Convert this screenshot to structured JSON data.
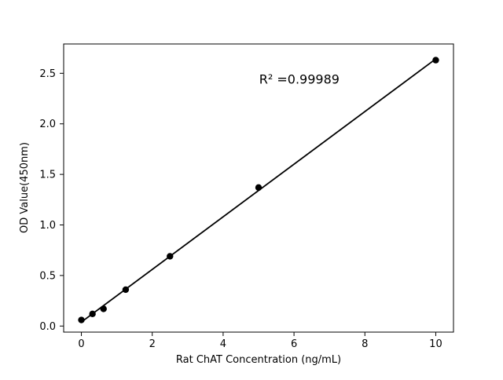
{
  "chart_data": {
    "type": "scatter",
    "title": "",
    "xlabel": "Rat ChAT Concentration (ng/mL)",
    "ylabel": "OD Value(450nm)",
    "annotation": {
      "text": "R² =0.99989",
      "x": 6.15,
      "y": 2.44
    },
    "series": [
      {
        "name": "standard-points",
        "x": [
          0,
          0.313,
          0.625,
          1.25,
          2.5,
          5,
          10
        ],
        "y": [
          0.06,
          0.12,
          0.17,
          0.36,
          0.69,
          1.37,
          2.63
        ],
        "marker": "circle",
        "color": "#000000"
      }
    ],
    "fit_line": {
      "show": true,
      "color": "#000000",
      "x_start": 0,
      "x_end": 10
    },
    "xlim": [
      -0.5,
      10.5
    ],
    "ylim": [
      -0.06,
      2.79
    ],
    "xticks": {
      "values": [
        0,
        2,
        4,
        6,
        8,
        10
      ],
      "labels": [
        "0",
        "2",
        "4",
        "6",
        "8",
        "10"
      ]
    },
    "yticks": {
      "values": [
        0,
        0.5,
        1.0,
        1.5,
        2.0,
        2.5
      ],
      "labels": [
        "0.0",
        "0.5",
        "1.0",
        "1.5",
        "2.0",
        "2.5"
      ]
    },
    "grid": false,
    "legend": null,
    "background_color": "#ffffff",
    "spine_color": "#000000"
  }
}
